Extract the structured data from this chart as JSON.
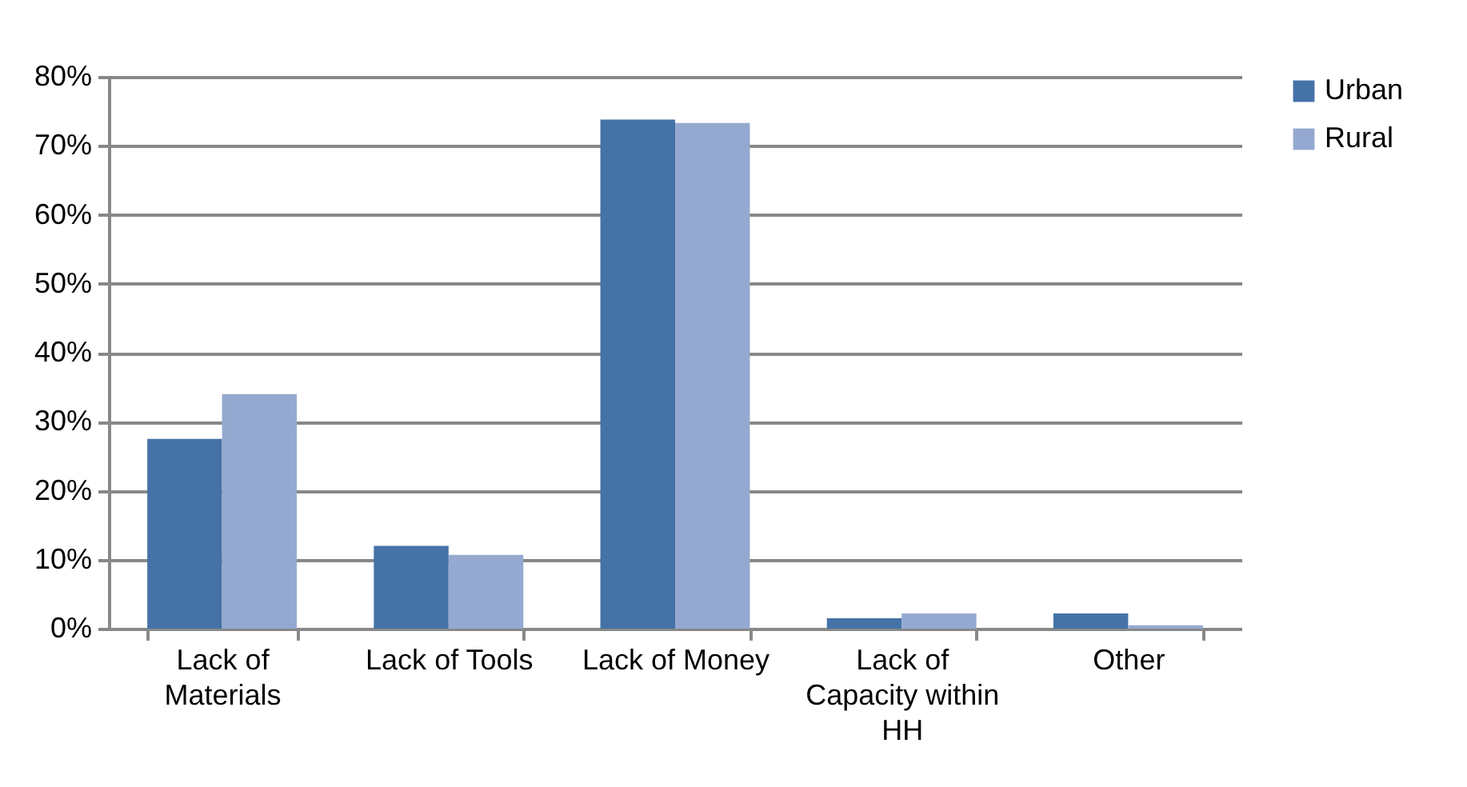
{
  "chart_data": {
    "type": "bar",
    "categories": [
      "Lack of Materials",
      "Lack of Tools",
      "Lack of Money",
      "Lack of Capacity within HH",
      "Other"
    ],
    "series": [
      {
        "name": "Urban",
        "color": "#4572a7",
        "values": [
          27.5,
          12.0,
          73.8,
          1.5,
          2.2
        ]
      },
      {
        "name": "Rural",
        "color": "#95a9d0",
        "values": [
          34.0,
          10.7,
          73.3,
          2.2,
          0.5
        ]
      }
    ],
    "ylim": [
      0,
      80
    ],
    "yticks": [
      {
        "value": 0,
        "label": "0%"
      },
      {
        "value": 10,
        "label": "10%"
      },
      {
        "value": 20,
        "label": "20%"
      },
      {
        "value": 30,
        "label": "30%"
      },
      {
        "value": 40,
        "label": "40%"
      },
      {
        "value": 50,
        "label": "50%"
      },
      {
        "value": 60,
        "label": "60%"
      },
      {
        "value": 70,
        "label": "70%"
      },
      {
        "value": 80,
        "label": "80%"
      }
    ],
    "grid": "y",
    "legend": "right"
  }
}
